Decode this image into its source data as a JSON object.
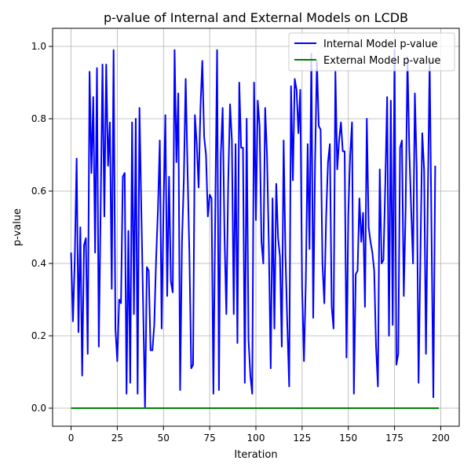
{
  "chart_data": {
    "type": "line",
    "title": "p-value of Internal and External Models on LCDB",
    "xlabel": "Iteration",
    "ylabel": "p-value",
    "xlim": [
      -10,
      210
    ],
    "ylim": [
      -0.05,
      1.05
    ],
    "xticks": [
      0,
      25,
      50,
      75,
      100,
      125,
      150,
      175,
      200
    ],
    "yticks": [
      0.0,
      0.2,
      0.4,
      0.6,
      0.8,
      1.0
    ],
    "xtick_labels": [
      "0",
      "25",
      "50",
      "75",
      "100",
      "125",
      "150",
      "175",
      "200"
    ],
    "ytick_labels": [
      "0.0",
      "0.2",
      "0.4",
      "0.6",
      "0.8",
      "1.0"
    ],
    "grid": true,
    "legend_position": "top-right",
    "series": [
      {
        "name": "Internal Model p-value",
        "color": "#0000ff",
        "x_start": 0,
        "values": [
          0.43,
          0.24,
          0.41,
          0.69,
          0.21,
          0.5,
          0.09,
          0.45,
          0.47,
          0.15,
          0.93,
          0.65,
          0.86,
          0.43,
          0.94,
          0.17,
          0.55,
          0.95,
          0.53,
          0.95,
          0.67,
          0.79,
          0.33,
          0.99,
          0.22,
          0.13,
          0.3,
          0.29,
          0.64,
          0.65,
          0.04,
          0.49,
          0.07,
          0.79,
          0.26,
          0.8,
          0.04,
          0.83,
          0.55,
          0.28,
          0.0,
          0.39,
          0.38,
          0.16,
          0.16,
          0.23,
          0.41,
          0.55,
          0.74,
          0.22,
          0.55,
          0.81,
          0.31,
          0.64,
          0.35,
          0.32,
          0.99,
          0.68,
          0.87,
          0.05,
          0.46,
          0.63,
          0.91,
          0.66,
          0.43,
          0.11,
          0.12,
          0.81,
          0.73,
          0.61,
          0.83,
          0.96,
          0.75,
          0.7,
          0.53,
          0.59,
          0.58,
          0.04,
          0.54,
          0.99,
          0.05,
          0.7,
          0.83,
          0.48,
          0.26,
          0.62,
          0.84,
          0.74,
          0.26,
          0.73,
          0.18,
          0.9,
          0.72,
          0.72,
          0.07,
          0.8,
          0.19,
          0.09,
          0.04,
          0.9,
          0.52,
          0.85,
          0.78,
          0.46,
          0.4,
          0.83,
          0.7,
          0.45,
          0.11,
          0.58,
          0.22,
          0.62,
          0.47,
          0.42,
          0.17,
          0.74,
          0.42,
          0.23,
          0.06,
          0.89,
          0.63,
          0.91,
          0.88,
          0.76,
          0.88,
          0.33,
          0.13,
          0.35,
          0.73,
          0.44,
          0.98,
          0.25,
          0.68,
          0.96,
          0.78,
          0.77,
          0.4,
          0.29,
          0.53,
          0.68,
          0.73,
          0.28,
          0.22,
          0.93,
          0.66,
          0.74,
          0.79,
          0.71,
          0.71,
          0.14,
          0.54,
          0.7,
          0.79,
          0.04,
          0.37,
          0.38,
          0.58,
          0.46,
          0.54,
          0.28,
          0.8,
          0.5,
          0.46,
          0.43,
          0.38,
          0.17,
          0.06,
          0.66,
          0.4,
          0.41,
          0.62,
          0.86,
          0.2,
          0.85,
          0.23,
          0.99,
          0.12,
          0.15,
          0.72,
          0.74,
          0.31,
          0.55,
          0.97,
          0.71,
          0.55,
          0.4,
          0.87,
          0.66,
          0.07,
          0.42,
          0.76,
          0.66,
          0.15,
          0.58,
          0.96,
          0.49,
          0.03,
          0.67
        ]
      },
      {
        "name": "External Model p-value",
        "color": "#008000",
        "x_start": 0,
        "x_end": 199,
        "constant": 0.0
      }
    ]
  }
}
